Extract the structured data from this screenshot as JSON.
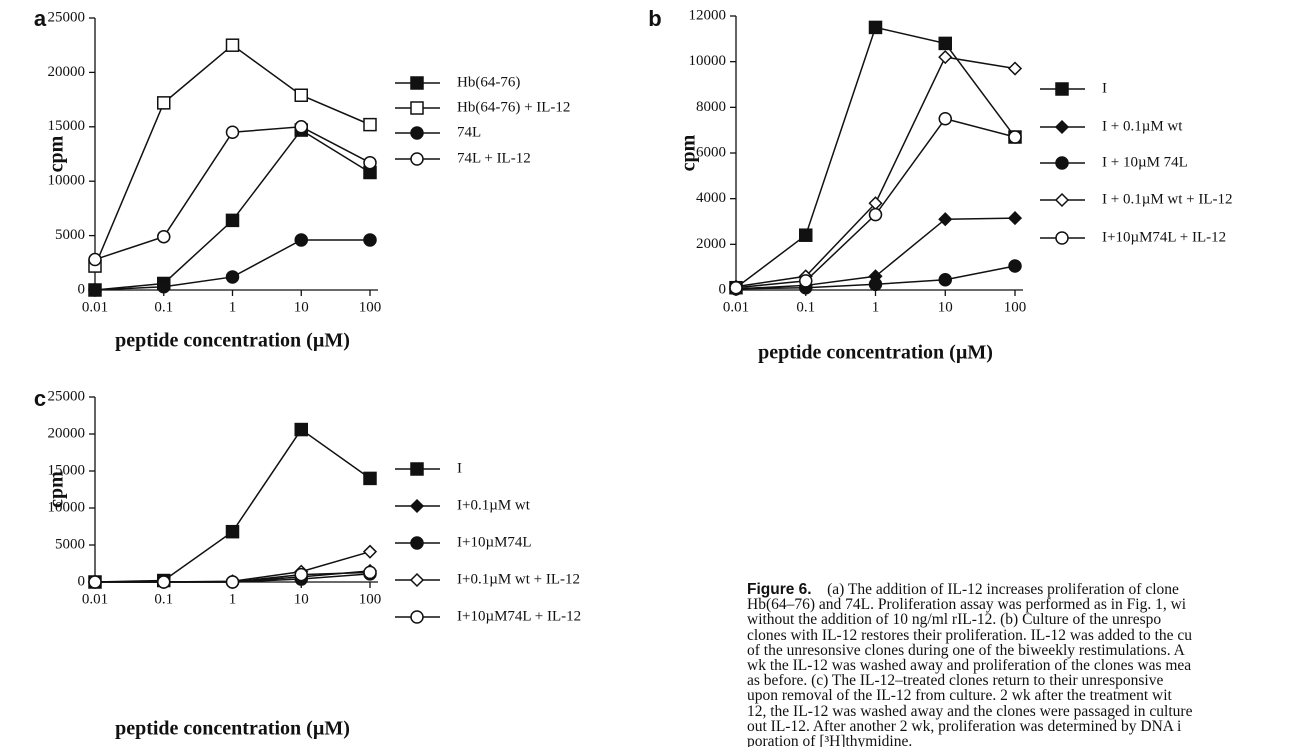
{
  "chart_data": [
    {
      "type": "line",
      "panel": "a",
      "xlabel": "peptide concentration (µM)",
      "ylabel": "cpm",
      "log_x": true,
      "x": [
        0.01,
        0.1,
        1,
        10,
        100
      ],
      "xlim": [
        0.01,
        100
      ],
      "xticks": [
        0.01,
        0.1,
        1,
        10,
        100
      ],
      "ylim": [
        0,
        25000
      ],
      "yticks": [
        0,
        5000,
        10000,
        15000,
        20000,
        25000
      ],
      "color": "#111111",
      "series": [
        {
          "name": "Hb(64-76)",
          "marker": "square-filled",
          "values": [
            0,
            600,
            6400,
            14700,
            10800
          ]
        },
        {
          "name": "Hb(64-76) + IL-12",
          "marker": "square-open",
          "values": [
            2200,
            17200,
            22500,
            17900,
            15200
          ]
        },
        {
          "name": "74L",
          "marker": "circle-filled",
          "values": [
            0,
            300,
            1200,
            4600,
            4600
          ]
        },
        {
          "name": "74L + IL-12",
          "marker": "circle-open",
          "values": [
            2800,
            4900,
            14500,
            15000,
            11700
          ]
        }
      ]
    },
    {
      "type": "line",
      "panel": "b",
      "xlabel": "peptide concentration (µM)",
      "ylabel": "cpm",
      "log_x": true,
      "x": [
        0.01,
        0.1,
        1,
        10,
        100
      ],
      "xlim": [
        0.01,
        100
      ],
      "xticks": [
        0.01,
        0.1,
        1,
        10,
        100
      ],
      "ylim": [
        0,
        12000
      ],
      "yticks": [
        0,
        2000,
        4000,
        6000,
        8000,
        10000,
        12000
      ],
      "color": "#111111",
      "series": [
        {
          "name": "I",
          "marker": "square-filled",
          "values": [
            100,
            2400,
            11500,
            10800,
            6700
          ]
        },
        {
          "name": "I + 0.1µM wt",
          "marker": "diamond-filled",
          "values": [
            50,
            200,
            600,
            3100,
            3150
          ]
        },
        {
          "name": "I + 10µM 74L",
          "marker": "circle-filled",
          "values": [
            50,
            100,
            250,
            450,
            1050
          ]
        },
        {
          "name": "I + 0.1µM wt + IL-12",
          "marker": "diamond-open",
          "values": [
            150,
            600,
            3800,
            10200,
            9700
          ]
        },
        {
          "name": "I+10µM74L + IL-12",
          "marker": "circle-open",
          "values": [
            100,
            400,
            3300,
            7500,
            6700
          ]
        }
      ]
    },
    {
      "type": "line",
      "panel": "c",
      "xlabel": "peptide concentration (µM)",
      "ylabel": "cpm",
      "log_x": true,
      "x": [
        0.01,
        0.1,
        1,
        10,
        100
      ],
      "xlim": [
        0.01,
        100
      ],
      "xticks": [
        0.01,
        0.1,
        1,
        10,
        100
      ],
      "ylim": [
        0,
        25000
      ],
      "yticks": [
        0,
        5000,
        10000,
        15000,
        20000,
        25000
      ],
      "color": "#111111",
      "series": [
        {
          "name": "I",
          "marker": "square-filled",
          "values": [
            0,
            200,
            6800,
            20600,
            14000
          ]
        },
        {
          "name": "I+0.1µM wt",
          "marker": "diamond-filled",
          "values": [
            0,
            0,
            0,
            700,
            1500
          ]
        },
        {
          "name": "I+10µM74L",
          "marker": "circle-filled",
          "values": [
            0,
            0,
            0,
            400,
            1100
          ]
        },
        {
          "name": "I+0.1µM wt + IL-12",
          "marker": "diamond-open",
          "values": [
            0,
            0,
            100,
            1400,
            4100
          ]
        },
        {
          "name": "I+10µM74L + IL-12",
          "marker": "circle-open",
          "values": [
            0,
            0,
            0,
            1000,
            1300
          ]
        }
      ]
    }
  ],
  "caption": {
    "label": "Figure 6.",
    "lines": [
      "(a) The addition of IL-12 increases proliferation of clone",
      "Hb(64–76) and 74L. Proliferation assay was performed as in Fig. 1, wi",
      "without the addition of 10 ng/ml rIL-12. (b) Culture of the unrespo",
      "clones with IL-12 restores their proliferation. IL-12 was added to the cu",
      "of the unresonsive clones during one of the biweekly restimulations. A",
      "wk the IL-12 was washed away and proliferation of the clones was mea",
      "as before. (c) The IL-12–treated clones return to their unresponsive",
      "upon removal of the IL-12 from culture. 2 wk after the treatment wit",
      "12, the IL-12 was washed away and the clones were passaged in culture",
      "out IL-12. After another 2 wk, proliferation was determined by DNA i",
      "poration of [³H]thymidine."
    ]
  }
}
